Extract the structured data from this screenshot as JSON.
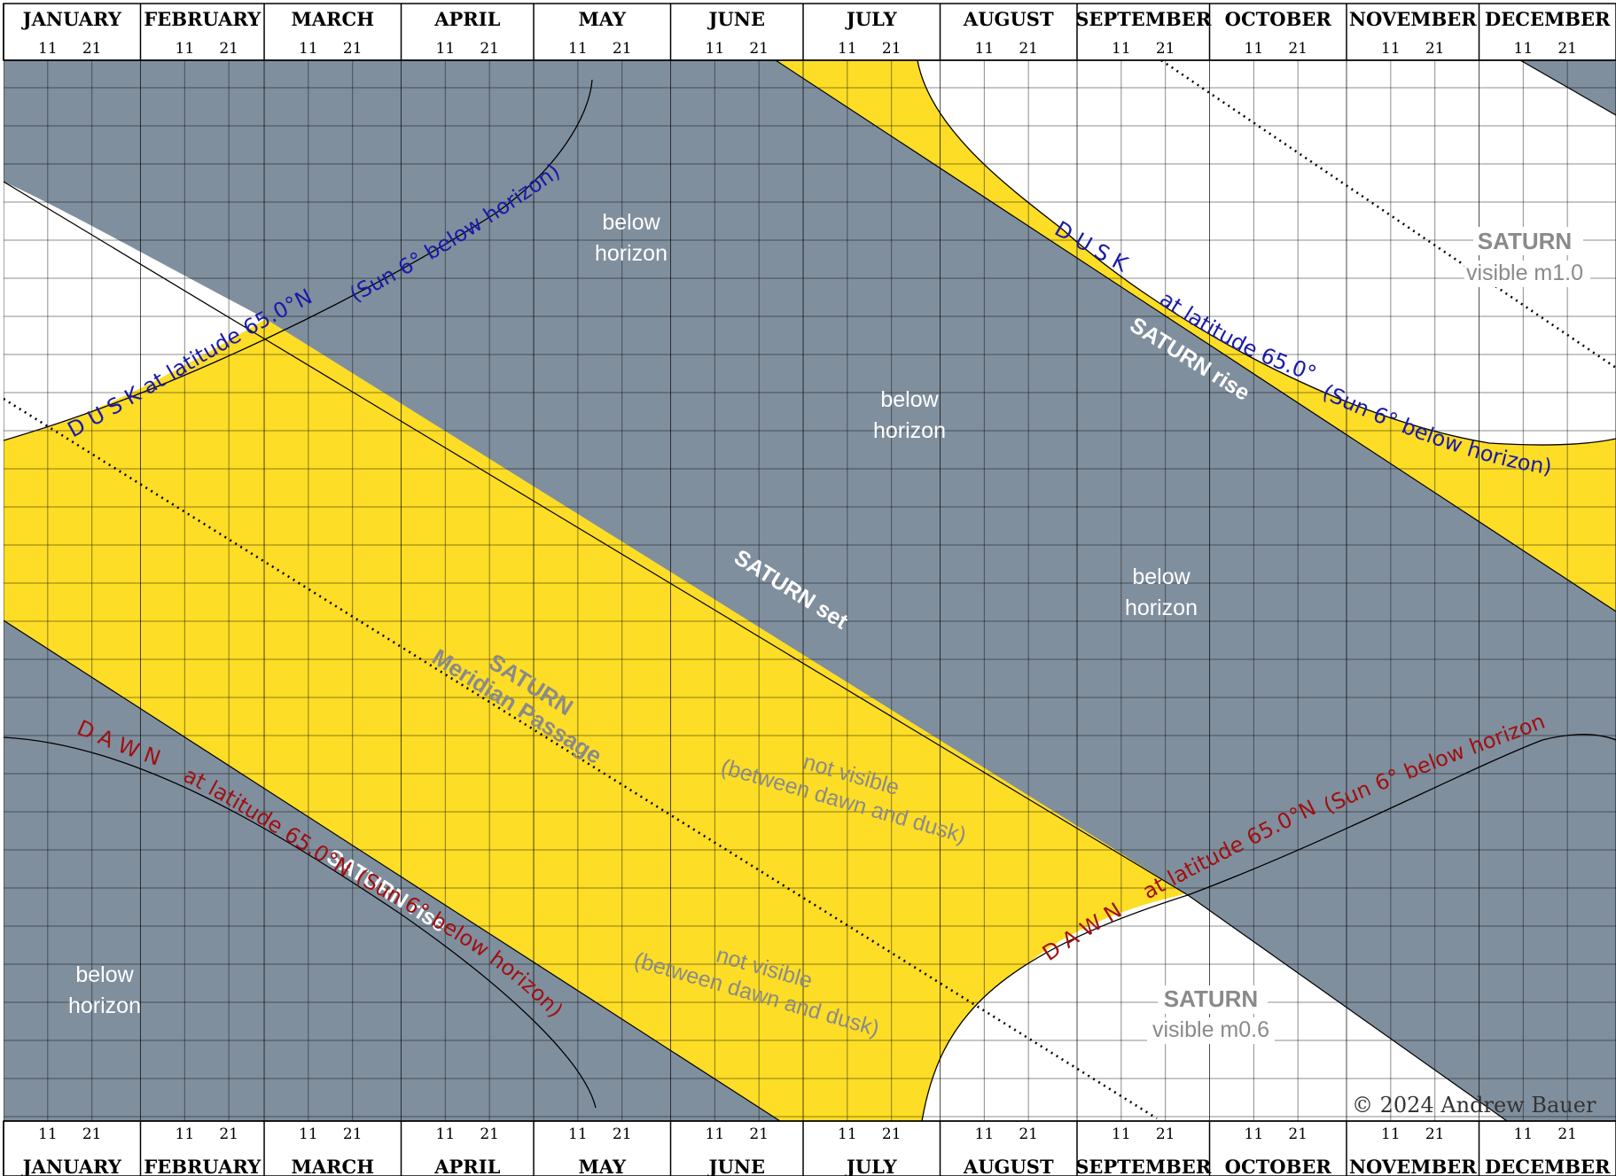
{
  "chart_data": {
    "type": "area",
    "title": "",
    "months": [
      "JANUARY",
      "FEBRUARY",
      "MARCH",
      "APRIL",
      "MAY",
      "JUNE",
      "JULY",
      "AUGUST",
      "SEPTEMBER",
      "OCTOBER",
      "NOVEMBER",
      "DECEMBER"
    ],
    "day_ticks": [
      "11",
      "21"
    ],
    "colors": {
      "below_horizon": "#808f9e",
      "not_visible": "#fddd26",
      "visible": "#ffffff",
      "dusk_curve_label": "#1a1aa8",
      "dawn_curve_label": "#a01010",
      "grid": "#000000"
    },
    "region_labels": [
      {
        "id": "below1",
        "text": [
          "below",
          "horizon"
        ]
      },
      {
        "id": "below2",
        "text": [
          "below",
          "horizon"
        ]
      },
      {
        "id": "below3",
        "text": [
          "below",
          "horizon"
        ]
      },
      {
        "id": "below4",
        "text": [
          "below",
          "horizon"
        ]
      },
      {
        "id": "notvis1",
        "text": [
          "not visible",
          "(between dawn and dusk)"
        ]
      },
      {
        "id": "notvis2",
        "text": [
          "not visible",
          "(between dawn and dusk)"
        ]
      }
    ],
    "visible_labels": [
      {
        "id": "vis1",
        "title": "SATURN",
        "text": "visible m1.0"
      },
      {
        "id": "vis2",
        "title": "SATURN",
        "text": "visible m0.6"
      }
    ],
    "meridian_label": [
      "SATURN",
      "Meridian Passage"
    ],
    "event_labels": {
      "set": "SATURN set",
      "rise": "SATURN rise"
    },
    "dusk_label": {
      "word": "D U S K",
      "lat": "at latitude 65.0°N",
      "sun": "(Sun 6° below horizon)"
    },
    "dawn_label": {
      "word": "D A W N",
      "lat": "at latitude 65.0°N",
      "sun": "(Sun 6° below horizon)"
    },
    "copyright": "© 2024 Andrew Bauer"
  }
}
